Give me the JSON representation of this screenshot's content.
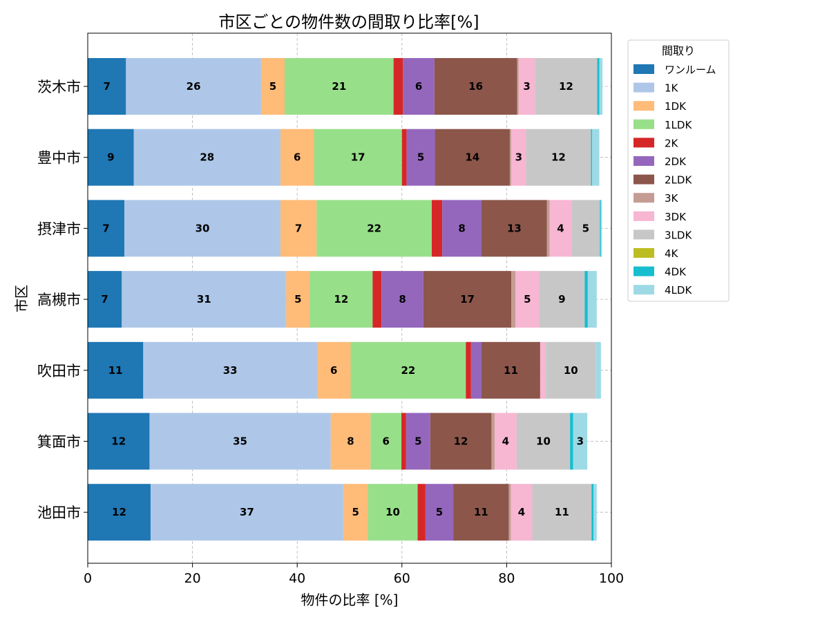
{
  "chart_data": {
    "type": "bar",
    "orientation": "horizontal",
    "stacked": true,
    "title": "市区ごとの物件数の間取り比率[%]",
    "xlabel": "物件の比率 [%]",
    "ylabel": "市区",
    "xlim": [
      0,
      100
    ],
    "xticks": [
      "0",
      "20",
      "40",
      "60",
      "80",
      "100"
    ],
    "grid": true,
    "legend_title": "間取り",
    "legend_position": "outside-top-right",
    "categories": [
      "茨木市",
      "豊中市",
      "摂津市",
      "高槻市",
      "吹田市",
      "箕面市",
      "池田市"
    ],
    "series": [
      {
        "name": "ワンルーム",
        "color": "#1f77b4",
        "values": [
          7.3,
          8.8,
          7.0,
          6.5,
          10.6,
          11.8,
          12.0
        ]
      },
      {
        "name": "1K",
        "color": "#aec7e8",
        "values": [
          25.8,
          28.0,
          29.8,
          31.4,
          33.2,
          34.6,
          36.8
        ]
      },
      {
        "name": "1DK",
        "color": "#ffbb78",
        "values": [
          4.5,
          6.4,
          6.9,
          4.5,
          6.4,
          7.6,
          4.7
        ]
      },
      {
        "name": "1LDK",
        "color": "#98df8a",
        "values": [
          20.8,
          16.8,
          22.0,
          12.0,
          22.0,
          5.9,
          9.5
        ]
      },
      {
        "name": "2K",
        "color": "#d62728",
        "values": [
          1.8,
          0.9,
          2.0,
          1.7,
          1.0,
          0.9,
          1.5
        ]
      },
      {
        "name": "2DK",
        "color": "#9467bd",
        "values": [
          6.0,
          5.4,
          7.5,
          8.0,
          2.0,
          4.6,
          5.3
        ]
      },
      {
        "name": "2LDK",
        "color": "#8c564b",
        "values": [
          15.8,
          14.3,
          12.5,
          16.8,
          11.2,
          11.7,
          10.6
        ]
      },
      {
        "name": "3K",
        "color": "#c49c94",
        "values": [
          0.3,
          0.3,
          0.5,
          0.8,
          0.0,
          0.6,
          0.4
        ]
      },
      {
        "name": "3DK",
        "color": "#f7b6d2",
        "values": [
          3.1,
          2.8,
          4.2,
          4.5,
          1.1,
          4.2,
          4.1
        ]
      },
      {
        "name": "3LDK",
        "color": "#c7c7c7",
        "values": [
          11.9,
          12.4,
          5.4,
          8.7,
          9.5,
          10.2,
          11.3
        ]
      },
      {
        "name": "4K",
        "color": "#bcbd22",
        "values": [
          0.0,
          0.0,
          0.0,
          0.0,
          0.0,
          0.0,
          0.0
        ]
      },
      {
        "name": "4DK",
        "color": "#17becf",
        "values": [
          0.4,
          0.2,
          0.2,
          0.6,
          0.0,
          0.6,
          0.4
        ]
      },
      {
        "name": "4LDK",
        "color": "#9edae5",
        "values": [
          0.6,
          1.4,
          0.2,
          1.7,
          1.0,
          2.7,
          0.6
        ]
      }
    ]
  }
}
